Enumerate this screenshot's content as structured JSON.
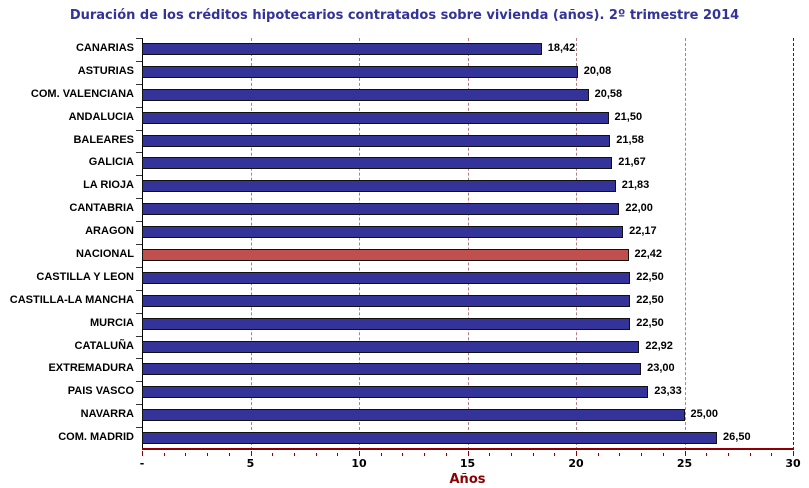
{
  "chart_data": {
    "type": "bar",
    "orientation": "horizontal",
    "title": "Duración de los créditos hipotecarios contratados sobre vivienda (años). 2º trimestre 2014",
    "xlabel": "Años",
    "ylabel": "",
    "xlim": [
      0,
      30
    ],
    "xticks": [
      "-",
      "5",
      "10",
      "15",
      "20",
      "25",
      "30"
    ],
    "grid": true,
    "categories": [
      "CANARIAS",
      "ASTURIAS",
      "COM. VALENCIANA",
      "ANDALUCIA",
      "BALEARES",
      "GALICIA",
      "LA RIOJA",
      "CANTABRIA",
      "ARAGON",
      "NACIONAL",
      "CASTILLA Y LEON",
      "CASTILLA-LA MANCHA",
      "MURCIA",
      "CATALUÑA",
      "EXTREMADURA",
      "PAIS VASCO",
      "NAVARRA",
      "COM. MADRID"
    ],
    "values": [
      18.42,
      20.08,
      20.58,
      21.5,
      21.58,
      21.67,
      21.83,
      22.0,
      22.17,
      22.42,
      22.5,
      22.5,
      22.5,
      22.92,
      23.0,
      23.33,
      25.0,
      26.5
    ],
    "value_labels": [
      "18,42",
      "20,08",
      "20,58",
      "21,50",
      "21,58",
      "21,67",
      "21,83",
      "22,00",
      "22,17",
      "22,42",
      "22,50",
      "22,50",
      "22,50",
      "22,92",
      "23,00",
      "23,33",
      "25,00",
      "26,50"
    ],
    "highlight": "NACIONAL",
    "colors": {
      "default": "#333399",
      "highlight": "#c0504d",
      "axis": "#8b0000",
      "title": "#333399"
    }
  }
}
